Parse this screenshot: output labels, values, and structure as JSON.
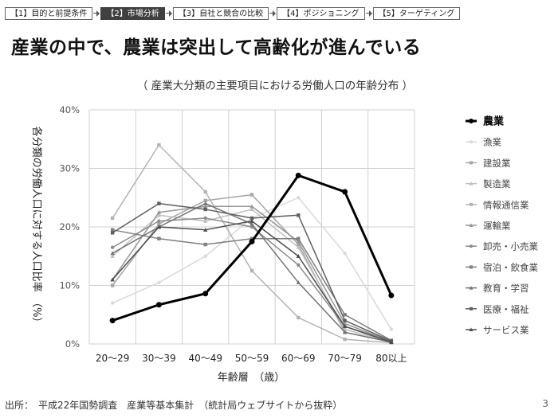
{
  "breadcrumb": [
    {
      "label": "【1】目的と前提条件",
      "active": false
    },
    {
      "label": "【2】市場分析",
      "active": true
    },
    {
      "label": "【3】自社と競合の比較",
      "active": false
    },
    {
      "label": "【4】ポジショニング",
      "active": false
    },
    {
      "label": "【5】ターゲティング",
      "active": false
    }
  ],
  "page_title": "産業の中で、農業は突出して高齢化が進んでいる",
  "footer": {
    "source": "出所：　平成22年国勢調査　産業等基本集計　（統計局ウェブサイトから抜粋）",
    "page_number": "3"
  },
  "chart_data": {
    "type": "line",
    "title": "（ 産業大分類の主要項目における労働人口の年齢分布 ）",
    "xlabel": "年齢層　（歳）",
    "ylabel": "各分類の労働人口に対する人口比率　（%）",
    "ylim": [
      0,
      40
    ],
    "yticks": [
      "0%",
      "10%",
      "20%",
      "30%",
      "40%"
    ],
    "grid": true,
    "legend_position": "right",
    "categories": [
      "20～29",
      "30～39",
      "40～49",
      "50～59",
      "60～69",
      "70～79",
      "80以上"
    ],
    "series": [
      {
        "name": "農業",
        "values": [
          4.0,
          6.7,
          8.6,
          17.5,
          28.8,
          26.0,
          8.3
        ],
        "color": "#000000",
        "highlight": true,
        "marker": "circle"
      },
      {
        "name": "漁業",
        "values": [
          7.0,
          10.5,
          15.0,
          21.5,
          25.0,
          15.5,
          2.5
        ],
        "color": "#d9d9d9",
        "highlight": false,
        "marker": "circle"
      },
      {
        "name": "建設業",
        "values": [
          10.0,
          20.5,
          24.5,
          25.5,
          17.0,
          2.0,
          0.3
        ],
        "color": "#a6a6a6",
        "highlight": false,
        "marker": "square"
      },
      {
        "name": "製造業",
        "values": [
          15.0,
          22.0,
          21.0,
          23.0,
          16.5,
          2.5,
          0.3
        ],
        "color": "#bfbfbf",
        "highlight": false,
        "marker": "triangle"
      },
      {
        "name": "情報通信業",
        "values": [
          21.5,
          34.0,
          26.0,
          12.5,
          4.5,
          0.8,
          0.2
        ],
        "color": "#b3b3b3",
        "highlight": false,
        "marker": "square"
      },
      {
        "name": "運輸業",
        "values": [
          11.0,
          22.5,
          23.5,
          23.5,
          17.5,
          3.5,
          0.4
        ],
        "color": "#969696",
        "highlight": false,
        "marker": "triangle"
      },
      {
        "name": "卸売・小売業",
        "values": [
          16.5,
          21.0,
          21.5,
          20.0,
          13.5,
          3.0,
          0.5
        ],
        "color": "#8c8c8c",
        "highlight": false,
        "marker": "circle"
      },
      {
        "name": "宿泊・飲食業",
        "values": [
          19.5,
          18.0,
          17.0,
          18.0,
          18.0,
          5.0,
          0.6
        ],
        "color": "#7f7f7f",
        "highlight": false,
        "marker": "square"
      },
      {
        "name": "教育・学習",
        "values": [
          15.5,
          20.0,
          24.0,
          20.5,
          10.5,
          2.0,
          0.3
        ],
        "color": "#737373",
        "highlight": false,
        "marker": "triangle"
      },
      {
        "name": "医療・福祉",
        "values": [
          19.0,
          24.0,
          23.0,
          21.5,
          22.0,
          4.0,
          0.5
        ],
        "color": "#5f5f5f",
        "highlight": false,
        "marker": "square"
      },
      {
        "name": "サービス業",
        "values": [
          11.0,
          20.0,
          19.5,
          21.0,
          15.0,
          3.0,
          0.3
        ],
        "color": "#4d4d4d",
        "highlight": false,
        "marker": "triangle"
      }
    ]
  }
}
